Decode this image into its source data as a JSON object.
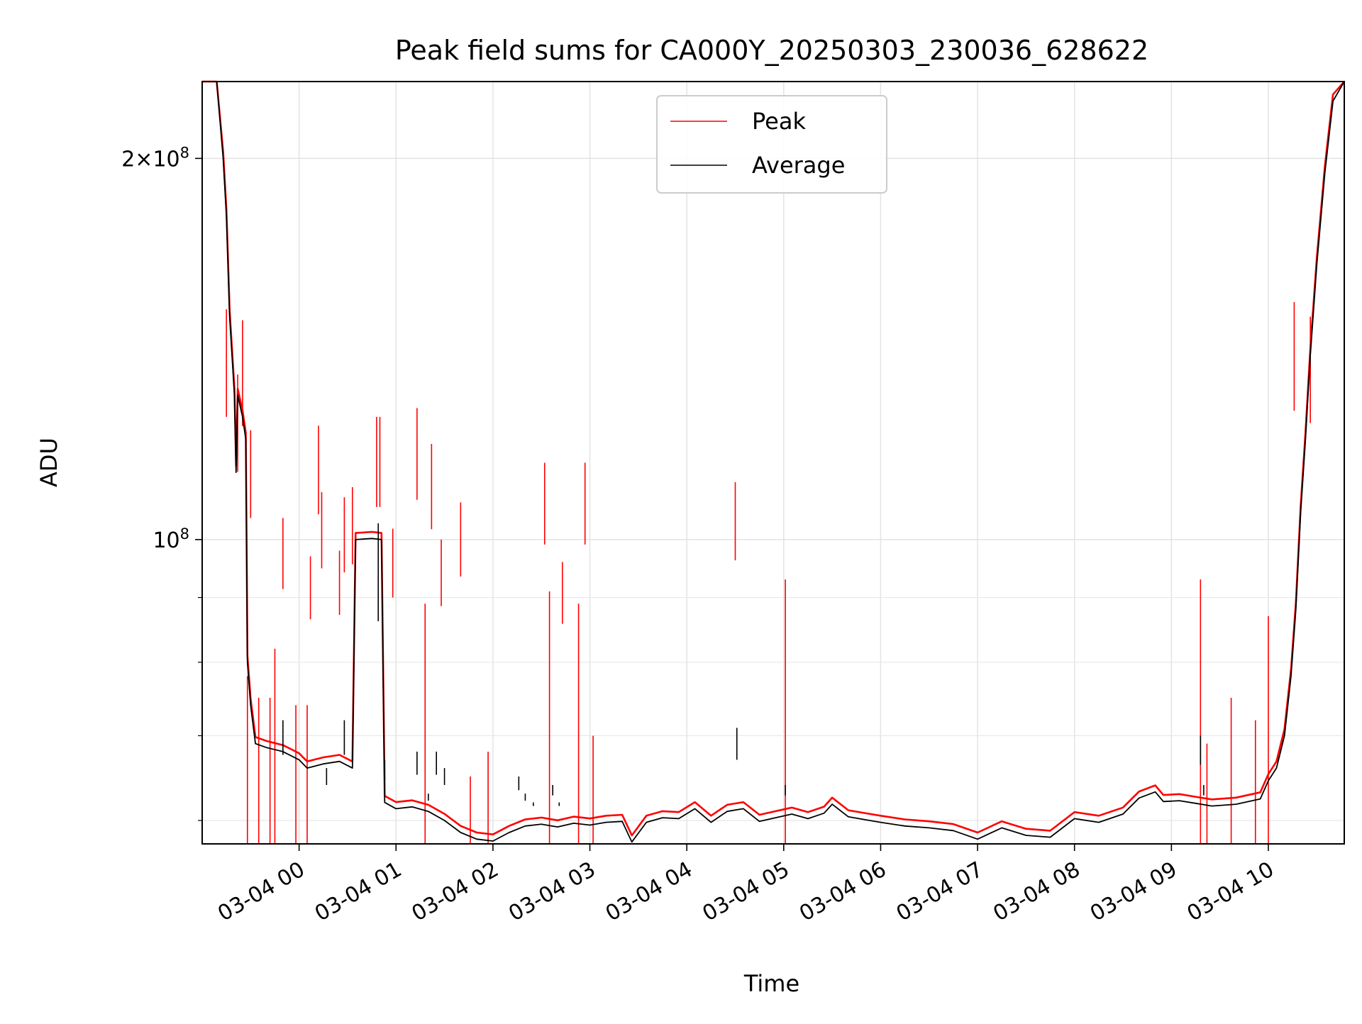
{
  "chart_data": {
    "type": "line",
    "title": "Peak field sums for CA000Y_20250303_230036_628622",
    "xlabel": "Time",
    "ylabel": "ADU",
    "y_scale": "log",
    "grid": true,
    "legend_position": "top-center",
    "x_range": [
      "2025-03-03 23:00",
      "2025-03-04 10:47"
    ],
    "ylim": [
      57500000,
      230000000
    ],
    "x_ticks": [
      "03-04 00",
      "03-04 01",
      "03-04 02",
      "03-04 03",
      "03-04 04",
      "03-04 05",
      "03-04 06",
      "03-04 07",
      "03-04 08",
      "03-04 09",
      "03-04 10"
    ],
    "x_tick_times": [
      "2025-03-04 00:00",
      "2025-03-04 01:00",
      "2025-03-04 02:00",
      "2025-03-04 03:00",
      "2025-03-04 04:00",
      "2025-03-04 05:00",
      "2025-03-04 06:00",
      "2025-03-04 07:00",
      "2025-03-04 08:00",
      "2025-03-04 09:00",
      "2025-03-04 10:00"
    ],
    "y_ticks": [
      {
        "value": 100000000,
        "mantissa": "",
        "exponent": "8",
        "label": "10"
      },
      {
        "value": 200000000,
        "mantissa": "2×",
        "exponent": "8",
        "label": "10"
      }
    ],
    "y_minor_ticks": [
      60000000,
      70000000,
      80000000,
      90000000
    ],
    "series": [
      {
        "name": "Average",
        "color": "#000000",
        "points": [
          [
            "2025-03-03 23:00",
            230000000
          ],
          [
            "2025-03-03 23:09",
            230000000
          ],
          [
            "2025-03-03 23:13",
            200000000
          ],
          [
            "2025-03-03 23:15",
            180000000
          ],
          [
            "2025-03-03 23:17",
            150000000
          ],
          [
            "2025-03-03 23:20",
            130000000
          ],
          [
            "2025-03-03 23:21",
            113000000
          ],
          [
            "2025-03-03 23:22",
            130000000
          ],
          [
            "2025-03-03 23:25",
            125000000
          ],
          [
            "2025-03-03 23:27",
            120000000
          ],
          [
            "2025-03-03 23:28",
            80000000
          ],
          [
            "2025-03-03 23:30",
            74000000
          ],
          [
            "2025-03-03 23:33",
            69000000
          ],
          [
            "2025-03-03 23:40",
            68500000
          ],
          [
            "2025-03-03 23:50",
            68000000
          ],
          [
            "2025-03-03 23:55",
            67500000
          ],
          [
            "2025-03-04 00:00",
            67000000
          ],
          [
            "2025-03-04 00:05",
            66000000
          ],
          [
            "2025-03-04 00:15",
            66500000
          ],
          [
            "2025-03-04 00:25",
            66800000
          ],
          [
            "2025-03-04 00:33",
            66000000
          ],
          [
            "2025-03-04 00:35",
            100000000
          ],
          [
            "2025-03-04 00:45",
            100200000
          ],
          [
            "2025-03-04 00:51",
            100000000
          ],
          [
            "2025-03-04 00:53",
            62000000
          ],
          [
            "2025-03-04 01:00",
            61300000
          ],
          [
            "2025-03-04 01:10",
            61500000
          ],
          [
            "2025-03-04 01:20",
            61000000
          ],
          [
            "2025-03-04 01:30",
            60000000
          ],
          [
            "2025-03-04 01:40",
            58700000
          ],
          [
            "2025-03-04 01:50",
            58000000
          ],
          [
            "2025-03-04 02:00",
            57800000
          ],
          [
            "2025-03-04 02:10",
            58700000
          ],
          [
            "2025-03-04 02:20",
            59400000
          ],
          [
            "2025-03-04 02:30",
            59600000
          ],
          [
            "2025-03-04 02:40",
            59300000
          ],
          [
            "2025-03-04 02:50",
            59700000
          ],
          [
            "2025-03-04 03:00",
            59500000
          ],
          [
            "2025-03-04 03:10",
            59800000
          ],
          [
            "2025-03-04 03:20",
            59900000
          ],
          [
            "2025-03-04 03:26",
            57700000
          ],
          [
            "2025-03-04 03:35",
            59800000
          ],
          [
            "2025-03-04 03:45",
            60300000
          ],
          [
            "2025-03-04 03:55",
            60200000
          ],
          [
            "2025-03-04 04:05",
            61300000
          ],
          [
            "2025-03-04 04:15",
            59800000
          ],
          [
            "2025-03-04 04:25",
            61000000
          ],
          [
            "2025-03-04 04:35",
            61300000
          ],
          [
            "2025-03-04 04:45",
            59900000
          ],
          [
            "2025-03-04 04:55",
            60300000
          ],
          [
            "2025-03-04 05:05",
            60700000
          ],
          [
            "2025-03-04 05:15",
            60200000
          ],
          [
            "2025-03-04 05:25",
            60800000
          ],
          [
            "2025-03-04 05:30",
            61800000
          ],
          [
            "2025-03-04 05:40",
            60400000
          ],
          [
            "2025-03-04 05:50",
            60100000
          ],
          [
            "2025-03-04 06:00",
            59800000
          ],
          [
            "2025-03-04 06:15",
            59400000
          ],
          [
            "2025-03-04 06:30",
            59200000
          ],
          [
            "2025-03-04 06:45",
            58900000
          ],
          [
            "2025-03-04 07:00",
            58000000
          ],
          [
            "2025-03-04 07:15",
            59200000
          ],
          [
            "2025-03-04 07:30",
            58400000
          ],
          [
            "2025-03-04 07:45",
            58200000
          ],
          [
            "2025-03-04 08:00",
            60200000
          ],
          [
            "2025-03-04 08:15",
            59800000
          ],
          [
            "2025-03-04 08:30",
            60700000
          ],
          [
            "2025-03-04 08:40",
            62500000
          ],
          [
            "2025-03-04 08:50",
            63200000
          ],
          [
            "2025-03-04 08:55",
            62100000
          ],
          [
            "2025-03-04 09:05",
            62200000
          ],
          [
            "2025-03-04 09:15",
            61900000
          ],
          [
            "2025-03-04 09:25",
            61600000
          ],
          [
            "2025-03-04 09:40",
            61800000
          ],
          [
            "2025-03-04 09:55",
            62400000
          ],
          [
            "2025-03-04 10:00",
            64500000
          ],
          [
            "2025-03-04 10:05",
            66000000
          ],
          [
            "2025-03-04 10:10",
            70000000
          ],
          [
            "2025-03-04 10:14",
            78000000
          ],
          [
            "2025-03-04 10:17",
            88000000
          ],
          [
            "2025-03-04 10:20",
            105000000
          ],
          [
            "2025-03-04 10:23",
            120000000
          ],
          [
            "2025-03-04 10:26",
            140000000
          ],
          [
            "2025-03-04 10:30",
            165000000
          ],
          [
            "2025-03-04 10:35",
            195000000
          ],
          [
            "2025-03-04 10:40",
            222000000
          ],
          [
            "2025-03-04 10:47",
            230000000
          ]
        ],
        "spikes": [
          [
            "2025-03-03 23:50",
            72000000
          ],
          [
            "2025-03-04 00:17",
            66000000
          ],
          [
            "2025-03-04 00:28",
            72000000
          ],
          [
            "2025-03-04 00:49",
            103000000
          ],
          [
            "2025-03-04 00:53",
            67000000
          ],
          [
            "2025-03-04 01:13",
            68000000
          ],
          [
            "2025-03-04 01:20",
            63000000
          ],
          [
            "2025-03-04 01:25",
            68000000
          ],
          [
            "2025-03-04 01:30",
            66000000
          ],
          [
            "2025-03-04 02:16",
            65000000
          ],
          [
            "2025-03-04 02:20",
            63000000
          ],
          [
            "2025-03-04 02:25",
            62000000
          ],
          [
            "2025-03-04 02:37",
            64000000
          ],
          [
            "2025-03-04 02:41",
            62000000
          ],
          [
            "2025-03-04 04:31",
            71000000
          ],
          [
            "2025-03-04 05:01",
            64000000
          ],
          [
            "2025-03-04 09:18",
            70000000
          ],
          [
            "2025-03-04 09:20",
            64000000
          ]
        ]
      },
      {
        "name": "Peak",
        "color": "#ff0000",
        "offset_ratio": 1.012,
        "spikes": [
          [
            "2025-03-03 23:15",
            152000000
          ],
          [
            "2025-03-03 23:22",
            135000000
          ],
          [
            "2025-03-03 23:25",
            149000000
          ],
          [
            "2025-03-03 23:28",
            78000000
          ],
          [
            "2025-03-03 23:30",
            122000000
          ],
          [
            "2025-03-03 23:35",
            75000000
          ],
          [
            "2025-03-03 23:42",
            75000000
          ],
          [
            "2025-03-03 23:45",
            82000000
          ],
          [
            "2025-03-03 23:50",
            104000000
          ],
          [
            "2025-03-03 23:58",
            74000000
          ],
          [
            "2025-03-04 00:05",
            74000000
          ],
          [
            "2025-03-04 00:07",
            97000000
          ],
          [
            "2025-03-04 00:12",
            123000000
          ],
          [
            "2025-03-04 00:14",
            109000000
          ],
          [
            "2025-03-04 00:25",
            98000000
          ],
          [
            "2025-03-04 00:28",
            108000000
          ],
          [
            "2025-03-04 00:33",
            110000000
          ],
          [
            "2025-03-04 00:48",
            125000000
          ],
          [
            "2025-03-04 00:50",
            125000000
          ],
          [
            "2025-03-04 00:58",
            102000000
          ],
          [
            "2025-03-04 01:13",
            127000000
          ],
          [
            "2025-03-04 01:18",
            89000000
          ],
          [
            "2025-03-04 01:22",
            119000000
          ],
          [
            "2025-03-04 01:28",
            100000000
          ],
          [
            "2025-03-04 01:40",
            107000000
          ],
          [
            "2025-03-04 01:46",
            65000000
          ],
          [
            "2025-03-04 01:57",
            68000000
          ],
          [
            "2025-03-04 02:32",
            115000000
          ],
          [
            "2025-03-04 02:35",
            91000000
          ],
          [
            "2025-03-04 02:43",
            96000000
          ],
          [
            "2025-03-04 02:53",
            89000000
          ],
          [
            "2025-03-04 02:57",
            115000000
          ],
          [
            "2025-03-04 03:02",
            70000000
          ],
          [
            "2025-03-04 04:30",
            111000000
          ],
          [
            "2025-03-04 05:01",
            93000000
          ],
          [
            "2025-03-04 09:18",
            93000000
          ],
          [
            "2025-03-04 09:22",
            69000000
          ],
          [
            "2025-03-04 09:37",
            75000000
          ],
          [
            "2025-03-04 09:52",
            72000000
          ],
          [
            "2025-03-04 10:00",
            87000000
          ],
          [
            "2025-03-04 10:16",
            154000000
          ],
          [
            "2025-03-04 10:26",
            150000000
          ]
        ]
      }
    ]
  }
}
